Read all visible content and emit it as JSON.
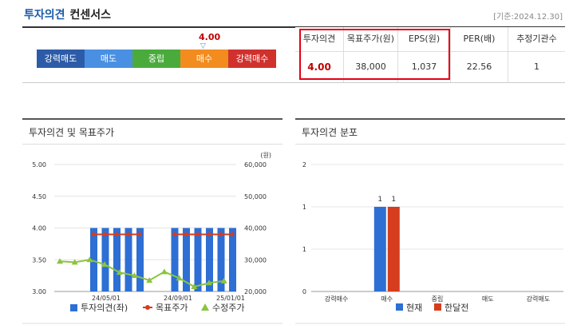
{
  "header": {
    "title": "투자의견",
    "subtitle": "컨센서스",
    "date": "[기준:2024.12.30]"
  },
  "scale": {
    "current_value": "4.00",
    "current_marker": "▽",
    "position_fraction": 0.7,
    "segments": [
      {
        "label": "강력매도",
        "color": "#2c5ca8"
      },
      {
        "label": "매도",
        "color": "#4a90e2"
      },
      {
        "label": "중립",
        "color": "#4aab3c"
      },
      {
        "label": "매수",
        "color": "#f28c1e"
      },
      {
        "label": "강력매수",
        "color": "#d0312d"
      }
    ]
  },
  "table": {
    "headers": [
      "투자의견",
      "목표주가(원)",
      "EPS(원)",
      "PER(배)",
      "추정기관수"
    ],
    "values": [
      "4.00",
      "38,000",
      "1,037",
      "22.56",
      "1"
    ]
  },
  "panel_left": {
    "title": "투자의견 및 목표주가"
  },
  "panel_right": {
    "title": "투자의견 분포"
  },
  "chart_data": [
    {
      "type": "bar",
      "title": "투자의견 및 목표주가",
      "x_tick_labels": [
        "24/05/01",
        "24/09/01",
        "25/01/01"
      ],
      "y_left_ticks": [
        "5.00",
        "4.50",
        "4.00",
        "3.50",
        "3.00"
      ],
      "y_left_range": [
        3.0,
        5.0
      ],
      "y_right_ticks": [
        "60,000",
        "50,000",
        "40,000",
        "30,000",
        "20,000"
      ],
      "y_right_range": [
        20000,
        60000
      ],
      "y_right_unit": "(원)",
      "grid": true,
      "legend_position": "bottom",
      "series": [
        {
          "name": "투자의견(좌)",
          "kind": "bar",
          "axis": "left",
          "color": "#2d6fd4",
          "values": [
            null,
            null,
            4,
            4,
            4,
            4,
            4,
            null,
            null,
            4,
            4,
            4,
            4,
            4,
            4
          ]
        },
        {
          "name": "목표주가",
          "kind": "line",
          "axis": "right",
          "color": "#d63c1e",
          "values": [
            null,
            null,
            38000,
            38000,
            38000,
            38000,
            38000,
            null,
            null,
            38000,
            38000,
            38000,
            38000,
            38000,
            38000
          ]
        },
        {
          "name": "수정주가",
          "kind": "line",
          "axis": "right",
          "color": "#8bc43f",
          "values": [
            29500,
            29200,
            30000,
            28500,
            26000,
            25000,
            23500,
            26200,
            24200,
            21500,
            22700,
            23300
          ]
        }
      ]
    },
    {
      "type": "bar",
      "title": "투자의견 분포",
      "categories": [
        "강력매수",
        "매수",
        "중립",
        "매도",
        "강력매도"
      ],
      "ylim": [
        0,
        2
      ],
      "y_ticks": [
        "2",
        "1",
        "1",
        "0"
      ],
      "grid": true,
      "legend_position": "bottom",
      "series": [
        {
          "name": "현재",
          "color": "#2d6fd4",
          "values": [
            0,
            1,
            0,
            0,
            0
          ]
        },
        {
          "name": "한달전",
          "color": "#d63c1e",
          "values": [
            0,
            1,
            0,
            0,
            0
          ]
        }
      ],
      "data_labels": [
        "1",
        "1"
      ]
    }
  ]
}
